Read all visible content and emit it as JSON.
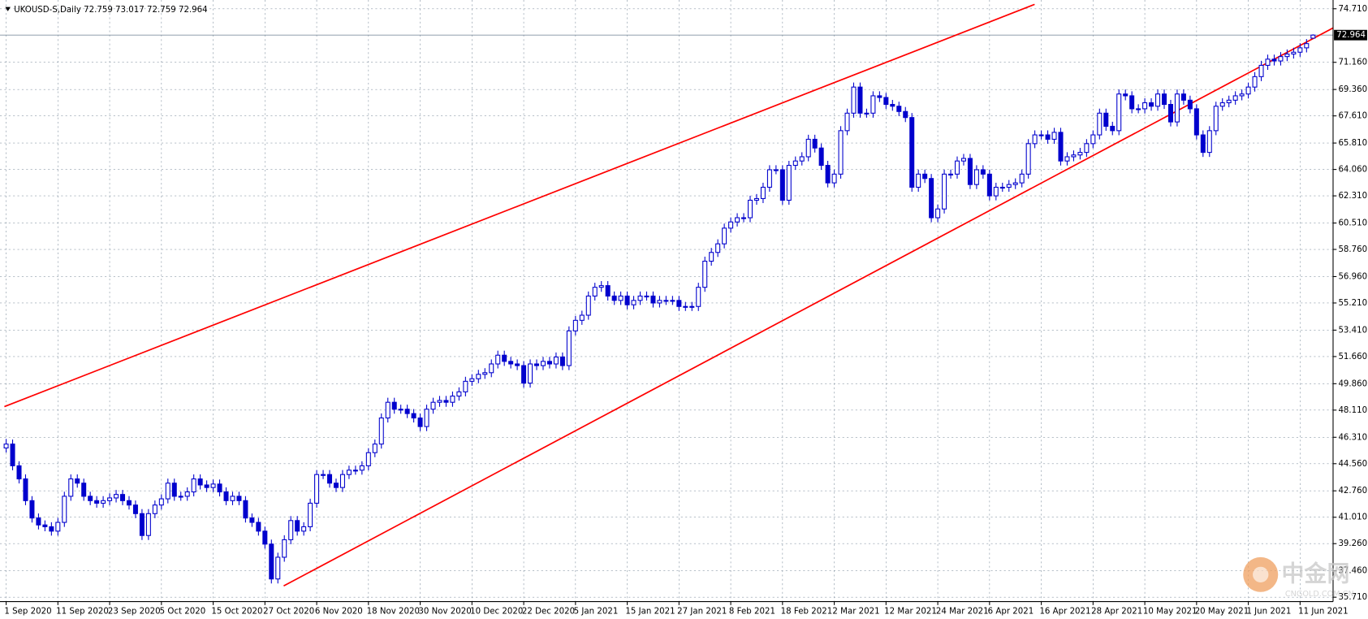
{
  "chart_data": {
    "type": "candlestick",
    "title": "UKOUSD-S,Daily  72.759 73.017 72.759 72.964",
    "bull_color": "#ffffff",
    "bear_color": "#0000cd",
    "wick_color": "#0000cd",
    "grid": true,
    "xlim": [
      -0.95,
      205.1
    ],
    "ylim": [
      35.42,
      75.29
    ],
    "yticks": [
      {
        "value": 74.71,
        "label": "74.710"
      },
      {
        "value": 71.16,
        "label": "71.160"
      },
      {
        "value": 69.36,
        "label": "69.360"
      },
      {
        "value": 67.61,
        "label": "67.610"
      },
      {
        "value": 65.81,
        "label": "65.810"
      },
      {
        "value": 64.06,
        "label": "64.060"
      },
      {
        "value": 62.31,
        "label": "62.310"
      },
      {
        "value": 60.51,
        "label": "60.510"
      },
      {
        "value": 58.76,
        "label": "58.760"
      },
      {
        "value": 56.96,
        "label": "56.960"
      },
      {
        "value": 55.21,
        "label": "55.210"
      },
      {
        "value": 53.41,
        "label": "53.410"
      },
      {
        "value": 51.66,
        "label": "51.660"
      },
      {
        "value": 49.86,
        "label": "49.860"
      },
      {
        "value": 48.11,
        "label": "48.110"
      },
      {
        "value": 46.31,
        "label": "46.310"
      },
      {
        "value": 44.56,
        "label": "44.560"
      },
      {
        "value": 42.76,
        "label": "42.760"
      },
      {
        "value": 41.01,
        "label": "41.010"
      },
      {
        "value": 39.26,
        "label": "39.260"
      },
      {
        "value": 37.46,
        "label": "37.460"
      },
      {
        "value": 35.71,
        "label": "35.710"
      }
    ],
    "xticks": [
      {
        "value": 0,
        "label": "1 Sep 2020"
      },
      {
        "value": 8,
        "label": "11 Sep 2020"
      },
      {
        "value": 16,
        "label": "23 Sep 2020"
      },
      {
        "value": 24,
        "label": "5 Oct 2020"
      },
      {
        "value": 32,
        "label": "15 Oct 2020"
      },
      {
        "value": 40,
        "label": "27 Oct 2020"
      },
      {
        "value": 48,
        "label": "6 Nov 2020"
      },
      {
        "value": 56,
        "label": "18 Nov 2020"
      },
      {
        "value": 64,
        "label": "30 Nov 2020"
      },
      {
        "value": 72,
        "label": "10 Dec 2020"
      },
      {
        "value": 80,
        "label": "22 Dec 2020"
      },
      {
        "value": 88,
        "label": "5 Jan 2021"
      },
      {
        "value": 96,
        "label": "15 Jan 2021"
      },
      {
        "value": 104,
        "label": "27 Jan 2021"
      },
      {
        "value": 112,
        "label": "8 Feb 2021"
      },
      {
        "value": 120,
        "label": "18 Feb 2021"
      },
      {
        "value": 128,
        "label": "2 Mar 2021"
      },
      {
        "value": 136,
        "label": "12 Mar 2021"
      },
      {
        "value": 144,
        "label": "24 Mar 2021"
      },
      {
        "value": 152,
        "label": "6 Apr 2021"
      },
      {
        "value": 160,
        "label": "16 Apr 2021"
      },
      {
        "value": 168,
        "label": "28 Apr 2021"
      },
      {
        "value": 176,
        "label": "10 May 2021"
      },
      {
        "value": 184,
        "label": "20 May 2021"
      },
      {
        "value": 192,
        "label": "1 Jun 2021"
      },
      {
        "value": 200,
        "label": "11 Jun 2021"
      }
    ],
    "last_price": {
      "value": 72.964,
      "label": "72.964"
    },
    "trendlines": [
      {
        "color": "#ff0000",
        "x": [
          -0.27,
          158.97
        ],
        "y": [
          48.34,
          75.0
        ]
      },
      {
        "color": "#ff0000",
        "x": [
          42.9,
          205.1
        ],
        "y": [
          36.46,
          73.44
        ]
      }
    ],
    "watermark": {
      "text": "中金网",
      "subtext": "CNGOLD.COM.CN"
    },
    "candles": [
      [
        45.6,
        46.2,
        45.3,
        45.86
      ],
      [
        45.86,
        46.16,
        44.12,
        44.42
      ],
      [
        44.42,
        44.72,
        43.25,
        43.55
      ],
      [
        43.55,
        43.85,
        41.81,
        42.11
      ],
      [
        42.11,
        42.41,
        40.66,
        40.96
      ],
      [
        40.96,
        41.26,
        40.2,
        40.5
      ],
      [
        40.5,
        40.8,
        40.08,
        40.38
      ],
      [
        40.38,
        40.68,
        39.79,
        40.09
      ],
      [
        40.09,
        40.97,
        39.79,
        40.67
      ],
      [
        40.67,
        42.7,
        40.37,
        42.4
      ],
      [
        42.4,
        43.85,
        42.1,
        43.55
      ],
      [
        43.55,
        43.85,
        42.97,
        43.27
      ],
      [
        43.27,
        43.57,
        42.1,
        42.4
      ],
      [
        42.4,
        42.7,
        41.81,
        42.11
      ],
      [
        42.11,
        42.41,
        41.64,
        41.94
      ],
      [
        41.94,
        42.41,
        41.64,
        42.11
      ],
      [
        42.11,
        42.59,
        41.81,
        42.29
      ],
      [
        42.29,
        42.82,
        41.99,
        42.52
      ],
      [
        42.52,
        42.82,
        41.81,
        42.11
      ],
      [
        42.11,
        42.41,
        41.52,
        41.82
      ],
      [
        41.82,
        42.12,
        40.95,
        41.25
      ],
      [
        41.25,
        41.55,
        39.5,
        39.8
      ],
      [
        39.8,
        41.55,
        39.5,
        41.25
      ],
      [
        41.25,
        42.12,
        40.95,
        41.82
      ],
      [
        41.82,
        42.53,
        41.52,
        42.23
      ],
      [
        42.23,
        43.57,
        41.93,
        43.27
      ],
      [
        43.27,
        43.57,
        42.1,
        42.4
      ],
      [
        42.4,
        42.7,
        42.1,
        42.4
      ],
      [
        42.4,
        42.99,
        42.1,
        42.69
      ],
      [
        42.69,
        43.85,
        42.39,
        43.55
      ],
      [
        43.55,
        43.85,
        42.85,
        43.15
      ],
      [
        43.15,
        43.45,
        42.68,
        42.98
      ],
      [
        42.98,
        43.51,
        42.68,
        43.21
      ],
      [
        43.21,
        43.51,
        42.39,
        42.69
      ],
      [
        42.69,
        42.99,
        41.81,
        42.11
      ],
      [
        42.11,
        42.7,
        41.81,
        42.4
      ],
      [
        42.4,
        42.7,
        41.81,
        42.11
      ],
      [
        42.11,
        42.41,
        40.66,
        40.96
      ],
      [
        40.96,
        41.26,
        40.37,
        40.67
      ],
      [
        40.67,
        40.97,
        39.79,
        40.09
      ],
      [
        40.09,
        40.39,
        38.93,
        39.23
      ],
      [
        39.23,
        39.53,
        36.62,
        36.92
      ],
      [
        36.92,
        38.66,
        36.62,
        38.36
      ],
      [
        38.36,
        39.82,
        38.06,
        39.52
      ],
      [
        39.52,
        41.09,
        39.22,
        40.79
      ],
      [
        40.79,
        41.09,
        39.79,
        40.09
      ],
      [
        40.09,
        40.68,
        39.79,
        40.38
      ],
      [
        40.38,
        42.24,
        40.08,
        41.94
      ],
      [
        41.94,
        44.14,
        41.64,
        43.84
      ],
      [
        43.84,
        44.14,
        43.54,
        43.84
      ],
      [
        43.84,
        44.14,
        42.97,
        43.27
      ],
      [
        43.27,
        43.57,
        42.68,
        42.98
      ],
      [
        42.98,
        44.14,
        42.68,
        43.84
      ],
      [
        43.84,
        44.43,
        43.54,
        44.13
      ],
      [
        44.13,
        44.43,
        43.83,
        44.13
      ],
      [
        44.13,
        44.72,
        43.83,
        44.42
      ],
      [
        44.42,
        45.59,
        44.12,
        45.29
      ],
      [
        45.29,
        46.16,
        44.99,
        45.86
      ],
      [
        45.86,
        47.89,
        45.56,
        47.59
      ],
      [
        47.59,
        48.93,
        47.29,
        48.63
      ],
      [
        48.63,
        48.93,
        47.87,
        48.17
      ],
      [
        48.17,
        48.47,
        47.87,
        48.17
      ],
      [
        48.17,
        48.47,
        47.58,
        47.88
      ],
      [
        47.88,
        48.18,
        47.29,
        47.59
      ],
      [
        47.59,
        47.89,
        46.72,
        47.02
      ],
      [
        47.02,
        48.47,
        46.72,
        48.17
      ],
      [
        48.17,
        48.93,
        47.87,
        48.63
      ],
      [
        48.63,
        49.05,
        48.33,
        48.75
      ],
      [
        48.75,
        49.05,
        48.33,
        48.63
      ],
      [
        48.63,
        49.34,
        48.33,
        49.04
      ],
      [
        49.04,
        49.62,
        48.74,
        49.32
      ],
      [
        49.32,
        50.32,
        49.02,
        50.02
      ],
      [
        50.02,
        50.49,
        49.72,
        50.19
      ],
      [
        50.19,
        50.78,
        49.89,
        50.48
      ],
      [
        50.48,
        50.89,
        50.18,
        50.59
      ],
      [
        50.59,
        51.47,
        50.29,
        51.17
      ],
      [
        51.17,
        52.05,
        50.87,
        51.75
      ],
      [
        51.75,
        52.05,
        51.04,
        51.34
      ],
      [
        51.34,
        51.64,
        50.87,
        51.17
      ],
      [
        51.17,
        51.47,
        50.76,
        51.06
      ],
      [
        51.06,
        51.36,
        49.6,
        49.9
      ],
      [
        49.9,
        51.47,
        49.6,
        51.17
      ],
      [
        51.17,
        51.47,
        50.76,
        51.06
      ],
      [
        51.06,
        51.64,
        50.76,
        51.34
      ],
      [
        51.34,
        51.64,
        50.87,
        51.17
      ],
      [
        51.17,
        51.93,
        50.87,
        51.63
      ],
      [
        51.63,
        51.93,
        50.76,
        51.06
      ],
      [
        51.06,
        53.66,
        50.76,
        53.36
      ],
      [
        53.36,
        54.36,
        53.06,
        54.06
      ],
      [
        54.06,
        54.7,
        53.76,
        54.4
      ],
      [
        54.4,
        55.97,
        54.1,
        55.67
      ],
      [
        55.67,
        56.55,
        55.37,
        56.25
      ],
      [
        56.25,
        56.66,
        55.95,
        56.36
      ],
      [
        56.36,
        56.66,
        55.37,
        55.67
      ],
      [
        55.67,
        55.97,
        55.08,
        55.38
      ],
      [
        55.38,
        55.97,
        55.08,
        55.67
      ],
      [
        55.67,
        55.97,
        54.79,
        55.09
      ],
      [
        55.09,
        55.68,
        54.79,
        55.38
      ],
      [
        55.38,
        55.97,
        55.08,
        55.67
      ],
      [
        55.67,
        55.97,
        55.37,
        55.67
      ],
      [
        55.67,
        55.97,
        54.91,
        55.21
      ],
      [
        55.21,
        55.68,
        54.91,
        55.38
      ],
      [
        55.38,
        55.68,
        55.08,
        55.38
      ],
      [
        55.38,
        55.68,
        55.08,
        55.38
      ],
      [
        55.38,
        55.68,
        54.68,
        54.98
      ],
      [
        54.98,
        55.28,
        54.68,
        54.98
      ],
      [
        54.98,
        55.28,
        54.68,
        54.98
      ],
      [
        54.98,
        56.55,
        54.68,
        56.25
      ],
      [
        56.25,
        58.28,
        55.95,
        57.98
      ],
      [
        57.98,
        58.86,
        57.68,
        58.56
      ],
      [
        58.56,
        59.43,
        58.26,
        59.13
      ],
      [
        59.13,
        60.47,
        58.83,
        60.17
      ],
      [
        60.17,
        60.88,
        59.87,
        60.58
      ],
      [
        60.58,
        61.16,
        60.28,
        60.86
      ],
      [
        60.86,
        61.16,
        60.56,
        60.86
      ],
      [
        60.86,
        62.32,
        60.56,
        62.02
      ],
      [
        62.02,
        62.43,
        61.72,
        62.13
      ],
      [
        62.13,
        63.18,
        61.83,
        62.88
      ],
      [
        62.88,
        64.34,
        62.58,
        64.04
      ],
      [
        64.04,
        64.34,
        63.74,
        64.04
      ],
      [
        64.04,
        64.34,
        61.72,
        62.02
      ],
      [
        62.02,
        64.63,
        61.72,
        64.33
      ],
      [
        64.33,
        64.92,
        64.03,
        64.62
      ],
      [
        64.62,
        65.2,
        64.32,
        64.9
      ],
      [
        64.9,
        66.36,
        64.6,
        66.06
      ],
      [
        66.06,
        66.36,
        65.18,
        65.48
      ],
      [
        65.48,
        65.78,
        64.03,
        64.33
      ],
      [
        64.33,
        64.63,
        62.87,
        63.17
      ],
      [
        63.17,
        64.05,
        62.87,
        63.75
      ],
      [
        63.75,
        66.93,
        63.45,
        66.63
      ],
      [
        66.63,
        68.09,
        66.33,
        67.79
      ],
      [
        67.79,
        69.82,
        67.49,
        69.52
      ],
      [
        69.52,
        69.82,
        67.49,
        67.79
      ],
      [
        67.79,
        68.09,
        67.49,
        67.79
      ],
      [
        67.79,
        69.24,
        67.49,
        68.94
      ],
      [
        68.94,
        69.24,
        68.53,
        68.83
      ],
      [
        68.83,
        69.13,
        68.07,
        68.37
      ],
      [
        68.37,
        68.67,
        67.95,
        68.25
      ],
      [
        68.25,
        68.55,
        67.6,
        67.9
      ],
      [
        67.9,
        68.2,
        67.2,
        67.5
      ],
      [
        67.5,
        67.8,
        62.58,
        62.88
      ],
      [
        62.88,
        64.05,
        62.58,
        63.75
      ],
      [
        63.75,
        64.05,
        63.16,
        63.46
      ],
      [
        63.46,
        63.76,
        60.56,
        60.86
      ],
      [
        60.86,
        61.74,
        60.56,
        61.44
      ],
      [
        61.44,
        64.05,
        61.14,
        63.75
      ],
      [
        63.75,
        64.05,
        63.45,
        63.75
      ],
      [
        63.75,
        64.92,
        63.45,
        64.62
      ],
      [
        64.62,
        65.09,
        64.32,
        64.79
      ],
      [
        64.79,
        65.09,
        62.76,
        63.06
      ],
      [
        63.06,
        64.34,
        62.76,
        64.04
      ],
      [
        64.04,
        64.34,
        63.45,
        63.75
      ],
      [
        63.75,
        64.05,
        62.01,
        62.31
      ],
      [
        62.31,
        63.18,
        62.01,
        62.88
      ],
      [
        62.88,
        63.18,
        62.58,
        62.88
      ],
      [
        62.88,
        63.36,
        62.58,
        63.06
      ],
      [
        63.06,
        63.47,
        62.76,
        63.17
      ],
      [
        63.17,
        64.05,
        62.87,
        63.75
      ],
      [
        63.75,
        66.07,
        63.45,
        65.77
      ],
      [
        65.77,
        66.65,
        65.47,
        66.35
      ],
      [
        66.35,
        66.65,
        66.05,
        66.35
      ],
      [
        66.35,
        66.65,
        65.76,
        66.06
      ],
      [
        66.06,
        66.82,
        65.76,
        66.52
      ],
      [
        66.52,
        66.82,
        64.32,
        64.62
      ],
      [
        64.62,
        65.2,
        64.32,
        64.9
      ],
      [
        64.9,
        65.32,
        64.6,
        65.02
      ],
      [
        65.02,
        65.49,
        64.72,
        65.19
      ],
      [
        65.19,
        66.07,
        64.89,
        65.77
      ],
      [
        65.77,
        66.65,
        65.47,
        66.35
      ],
      [
        66.35,
        68.09,
        66.05,
        67.79
      ],
      [
        67.79,
        68.09,
        66.62,
        66.92
      ],
      [
        66.92,
        67.22,
        66.33,
        66.63
      ],
      [
        66.63,
        69.36,
        66.33,
        69.06
      ],
      [
        69.06,
        69.36,
        68.64,
        68.94
      ],
      [
        68.94,
        69.24,
        67.78,
        68.08
      ],
      [
        68.08,
        68.38,
        67.78,
        68.08
      ],
      [
        68.08,
        68.78,
        67.78,
        68.48
      ],
      [
        68.48,
        68.78,
        67.95,
        68.25
      ],
      [
        68.25,
        69.36,
        67.95,
        69.06
      ],
      [
        69.06,
        69.36,
        68.07,
        68.37
      ],
      [
        68.37,
        68.67,
        66.91,
        67.21
      ],
      [
        67.21,
        69.36,
        66.91,
        69.06
      ],
      [
        69.06,
        69.36,
        68.35,
        68.65
      ],
      [
        68.65,
        68.95,
        67.78,
        68.08
      ],
      [
        68.08,
        68.38,
        66.05,
        66.35
      ],
      [
        66.35,
        66.65,
        64.89,
        65.19
      ],
      [
        65.19,
        66.93,
        64.89,
        66.63
      ],
      [
        66.63,
        68.55,
        66.33,
        68.25
      ],
      [
        68.25,
        68.78,
        67.95,
        68.48
      ],
      [
        68.48,
        68.95,
        68.18,
        68.65
      ],
      [
        68.65,
        69.24,
        68.35,
        68.94
      ],
      [
        68.94,
        69.36,
        68.64,
        69.06
      ],
      [
        69.06,
        69.82,
        68.76,
        69.52
      ],
      [
        69.52,
        70.51,
        69.22,
        70.21
      ],
      [
        70.21,
        71.26,
        69.91,
        70.96
      ],
      [
        70.96,
        71.67,
        70.66,
        71.37
      ],
      [
        71.37,
        71.67,
        70.95,
        71.25
      ],
      [
        71.25,
        71.84,
        70.95,
        71.54
      ],
      [
        71.54,
        72.01,
        71.24,
        71.71
      ],
      [
        71.71,
        72.13,
        71.41,
        71.83
      ],
      [
        71.83,
        72.42,
        71.53,
        72.12
      ],
      [
        72.12,
        72.7,
        71.82,
        72.4
      ],
      [
        72.759,
        73.017,
        72.759,
        72.964
      ]
    ]
  }
}
